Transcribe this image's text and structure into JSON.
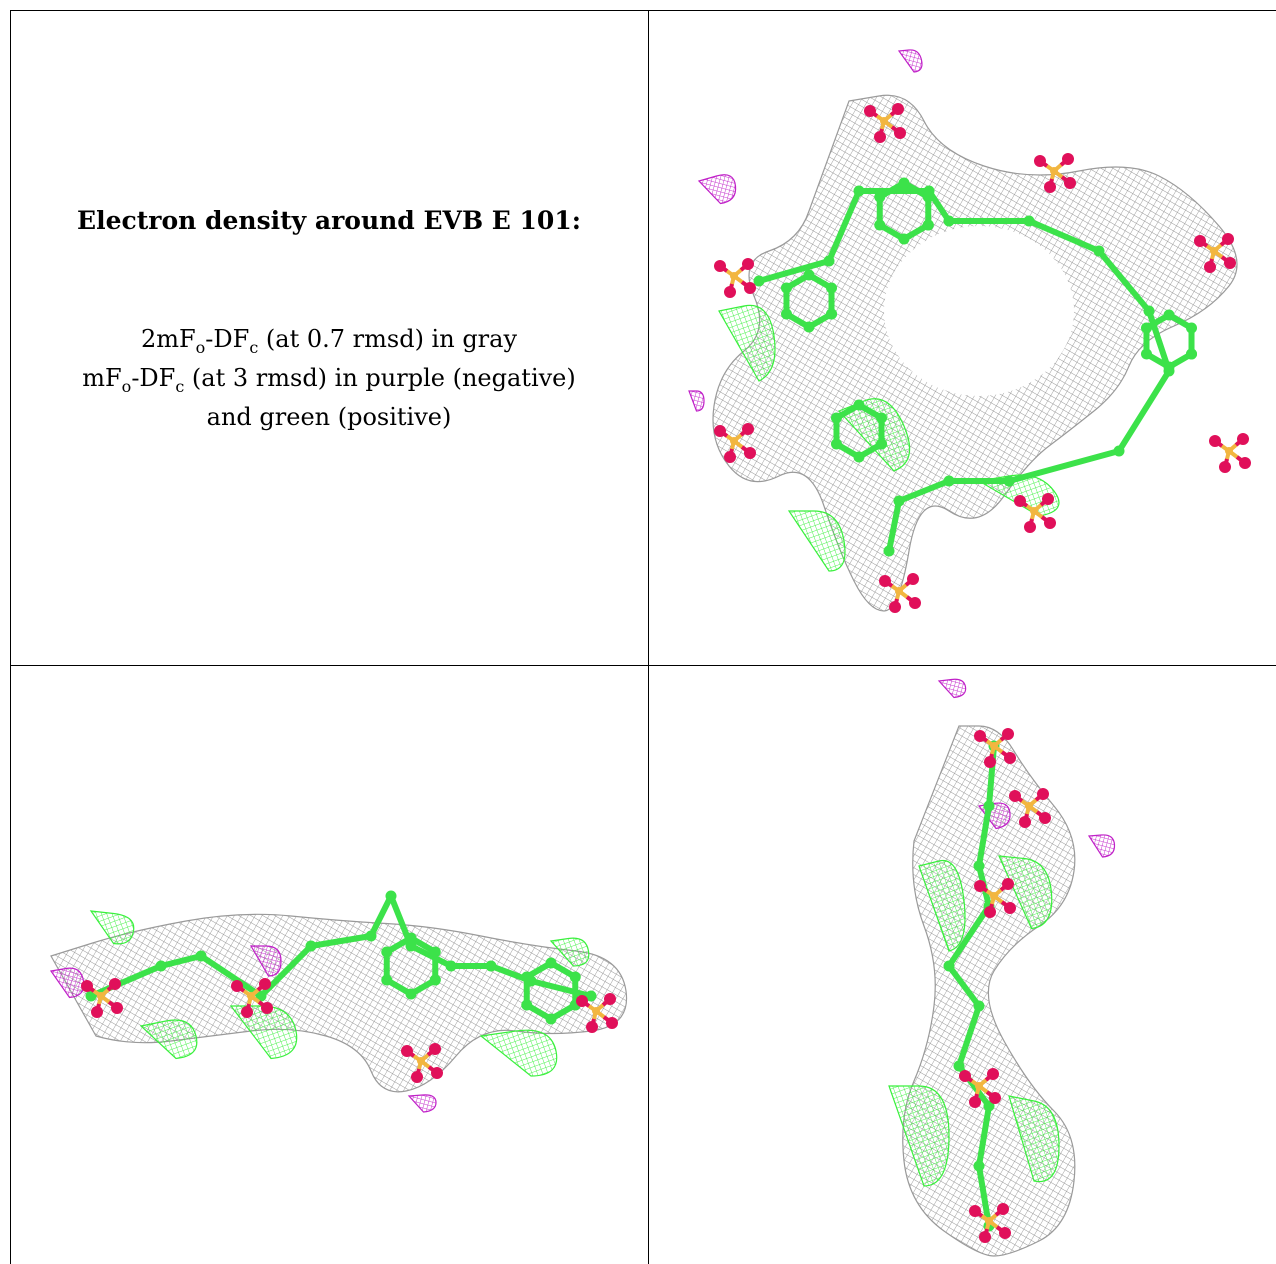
{
  "caption": {
    "title": "Electron density around EVB E 101:",
    "legend": [
      {
        "map": "2mF",
        "o": "o",
        "mid": "-DF",
        "c": "c",
        "rest": " (at 0.7 rmsd) in gray"
      },
      {
        "map": "mF",
        "o": "o",
        "mid": "-DF",
        "c": "c",
        "rest": " (at 3 rmsd) in purple (negative)"
      },
      {
        "text": "and green (positive)"
      }
    ]
  },
  "colors": {
    "mesh_gray": "#8c8c8c",
    "bond_green": "#3ce24a",
    "oxygen": "#e0105a",
    "sulfur": "#f2b640",
    "negative": "#c020c8",
    "positive": "#39f03c"
  },
  "panels": [
    {
      "id": "top-right",
      "view": "face-on ring"
    },
    {
      "id": "bottom-left",
      "view": "side view"
    },
    {
      "id": "bottom-right",
      "view": "edge view"
    }
  ]
}
